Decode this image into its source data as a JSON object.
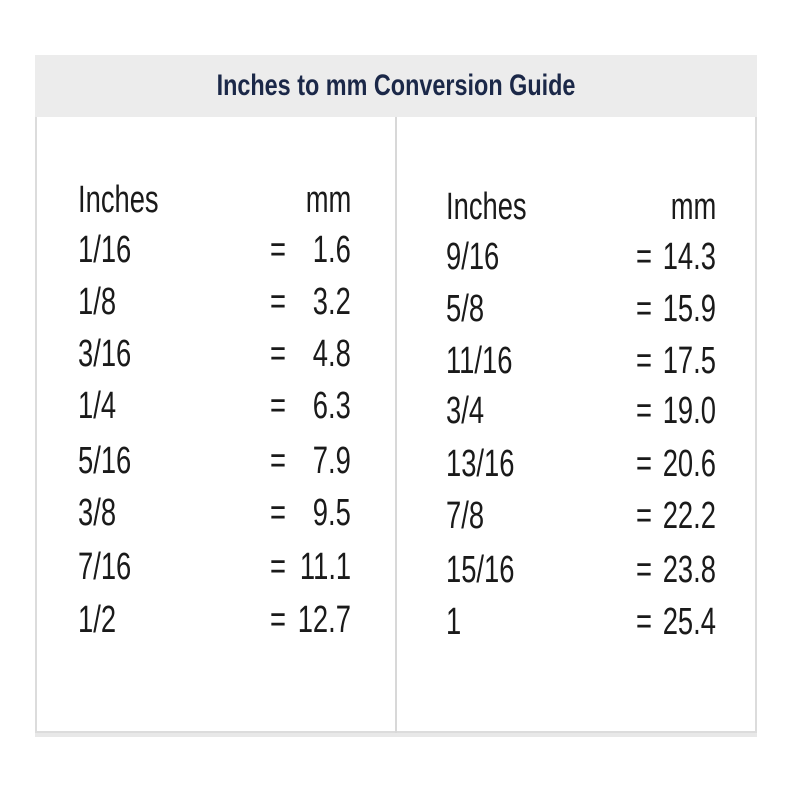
{
  "title": "Inches to mm Conversion Guide",
  "left": {
    "header_inches": "Inches",
    "header_mm": "mm",
    "rows": [
      {
        "inches": "1/16",
        "eq": "=",
        "mm": "1.6"
      },
      {
        "inches": "1/8",
        "eq": "=",
        "mm": "3.2"
      },
      {
        "inches": "3/16",
        "eq": "=",
        "mm": "4.8"
      },
      {
        "inches": "1/4",
        "eq": "=",
        "mm": "6.3"
      },
      {
        "inches": "5/16",
        "eq": "=",
        "mm": "7.9"
      },
      {
        "inches": "3/8",
        "eq": "=",
        "mm": "9.5"
      },
      {
        "inches": "7/16",
        "eq": "=",
        "mm": "11.1"
      },
      {
        "inches": "1/2",
        "eq": "=",
        "mm": "12.7"
      }
    ]
  },
  "right": {
    "header_inches": "Inches",
    "header_mm": "mm",
    "rows": [
      {
        "inches": "9/16",
        "eq": "=",
        "mm": "14.3"
      },
      {
        "inches": "5/8",
        "eq": "=",
        "mm": "15.9"
      },
      {
        "inches": "11/16",
        "eq": "=",
        "mm": "17.5"
      },
      {
        "inches": "3/4",
        "eq": "=",
        "mm": "19.0"
      },
      {
        "inches": "13/16",
        "eq": "=",
        "mm": "20.6"
      },
      {
        "inches": "7/8",
        "eq": "=",
        "mm": "22.2"
      },
      {
        "inches": "15/16",
        "eq": "=",
        "mm": "23.8"
      },
      {
        "inches": "1",
        "eq": "=",
        "mm": "25.4"
      }
    ]
  },
  "colors": {
    "title": "#1b2848",
    "header_bg": "#ececec",
    "border": "#dcdcdc"
  }
}
